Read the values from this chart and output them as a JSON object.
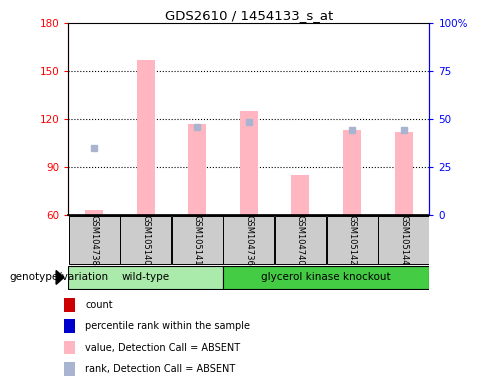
{
  "title": "GDS2610 / 1454133_s_at",
  "samples": [
    "GSM104738",
    "GSM105140",
    "GSM105141",
    "GSM104736",
    "GSM104740",
    "GSM105142",
    "GSM105144"
  ],
  "absent_bar_values": [
    63,
    157,
    117,
    125,
    85,
    113,
    112
  ],
  "absent_rank_dots_left_axis": [
    102,
    null,
    115,
    118,
    null,
    113,
    113
  ],
  "ylim_left": [
    60,
    180
  ],
  "ylim_right": [
    0,
    100
  ],
  "yticks_left": [
    60,
    90,
    120,
    150,
    180
  ],
  "yticks_right": [
    0,
    25,
    50,
    75,
    100
  ],
  "ytick_labels_right": [
    "0",
    "25",
    "50",
    "75",
    "100%"
  ],
  "bar_color_absent": "#FFB6C1",
  "rank_dot_color_absent": "#A8B4D0",
  "legend_items": [
    {
      "label": "count",
      "color": "#CC0000"
    },
    {
      "label": "percentile rank within the sample",
      "color": "#0000CC"
    },
    {
      "label": "value, Detection Call = ABSENT",
      "color": "#FFB6C1"
    },
    {
      "label": "rank, Detection Call = ABSENT",
      "color": "#A8B4D0"
    }
  ],
  "xlabel_group": "genotype/variation",
  "bar_bottom": 60,
  "wt_indices": [
    0,
    1,
    2
  ],
  "gk_indices": [
    3,
    4,
    5,
    6
  ],
  "wt_label": "wild-type",
  "gk_label": "glycerol kinase knockout",
  "wt_color": "#AAEAAA",
  "gk_color": "#44CC44",
  "sample_box_color": "#CCCCCC"
}
